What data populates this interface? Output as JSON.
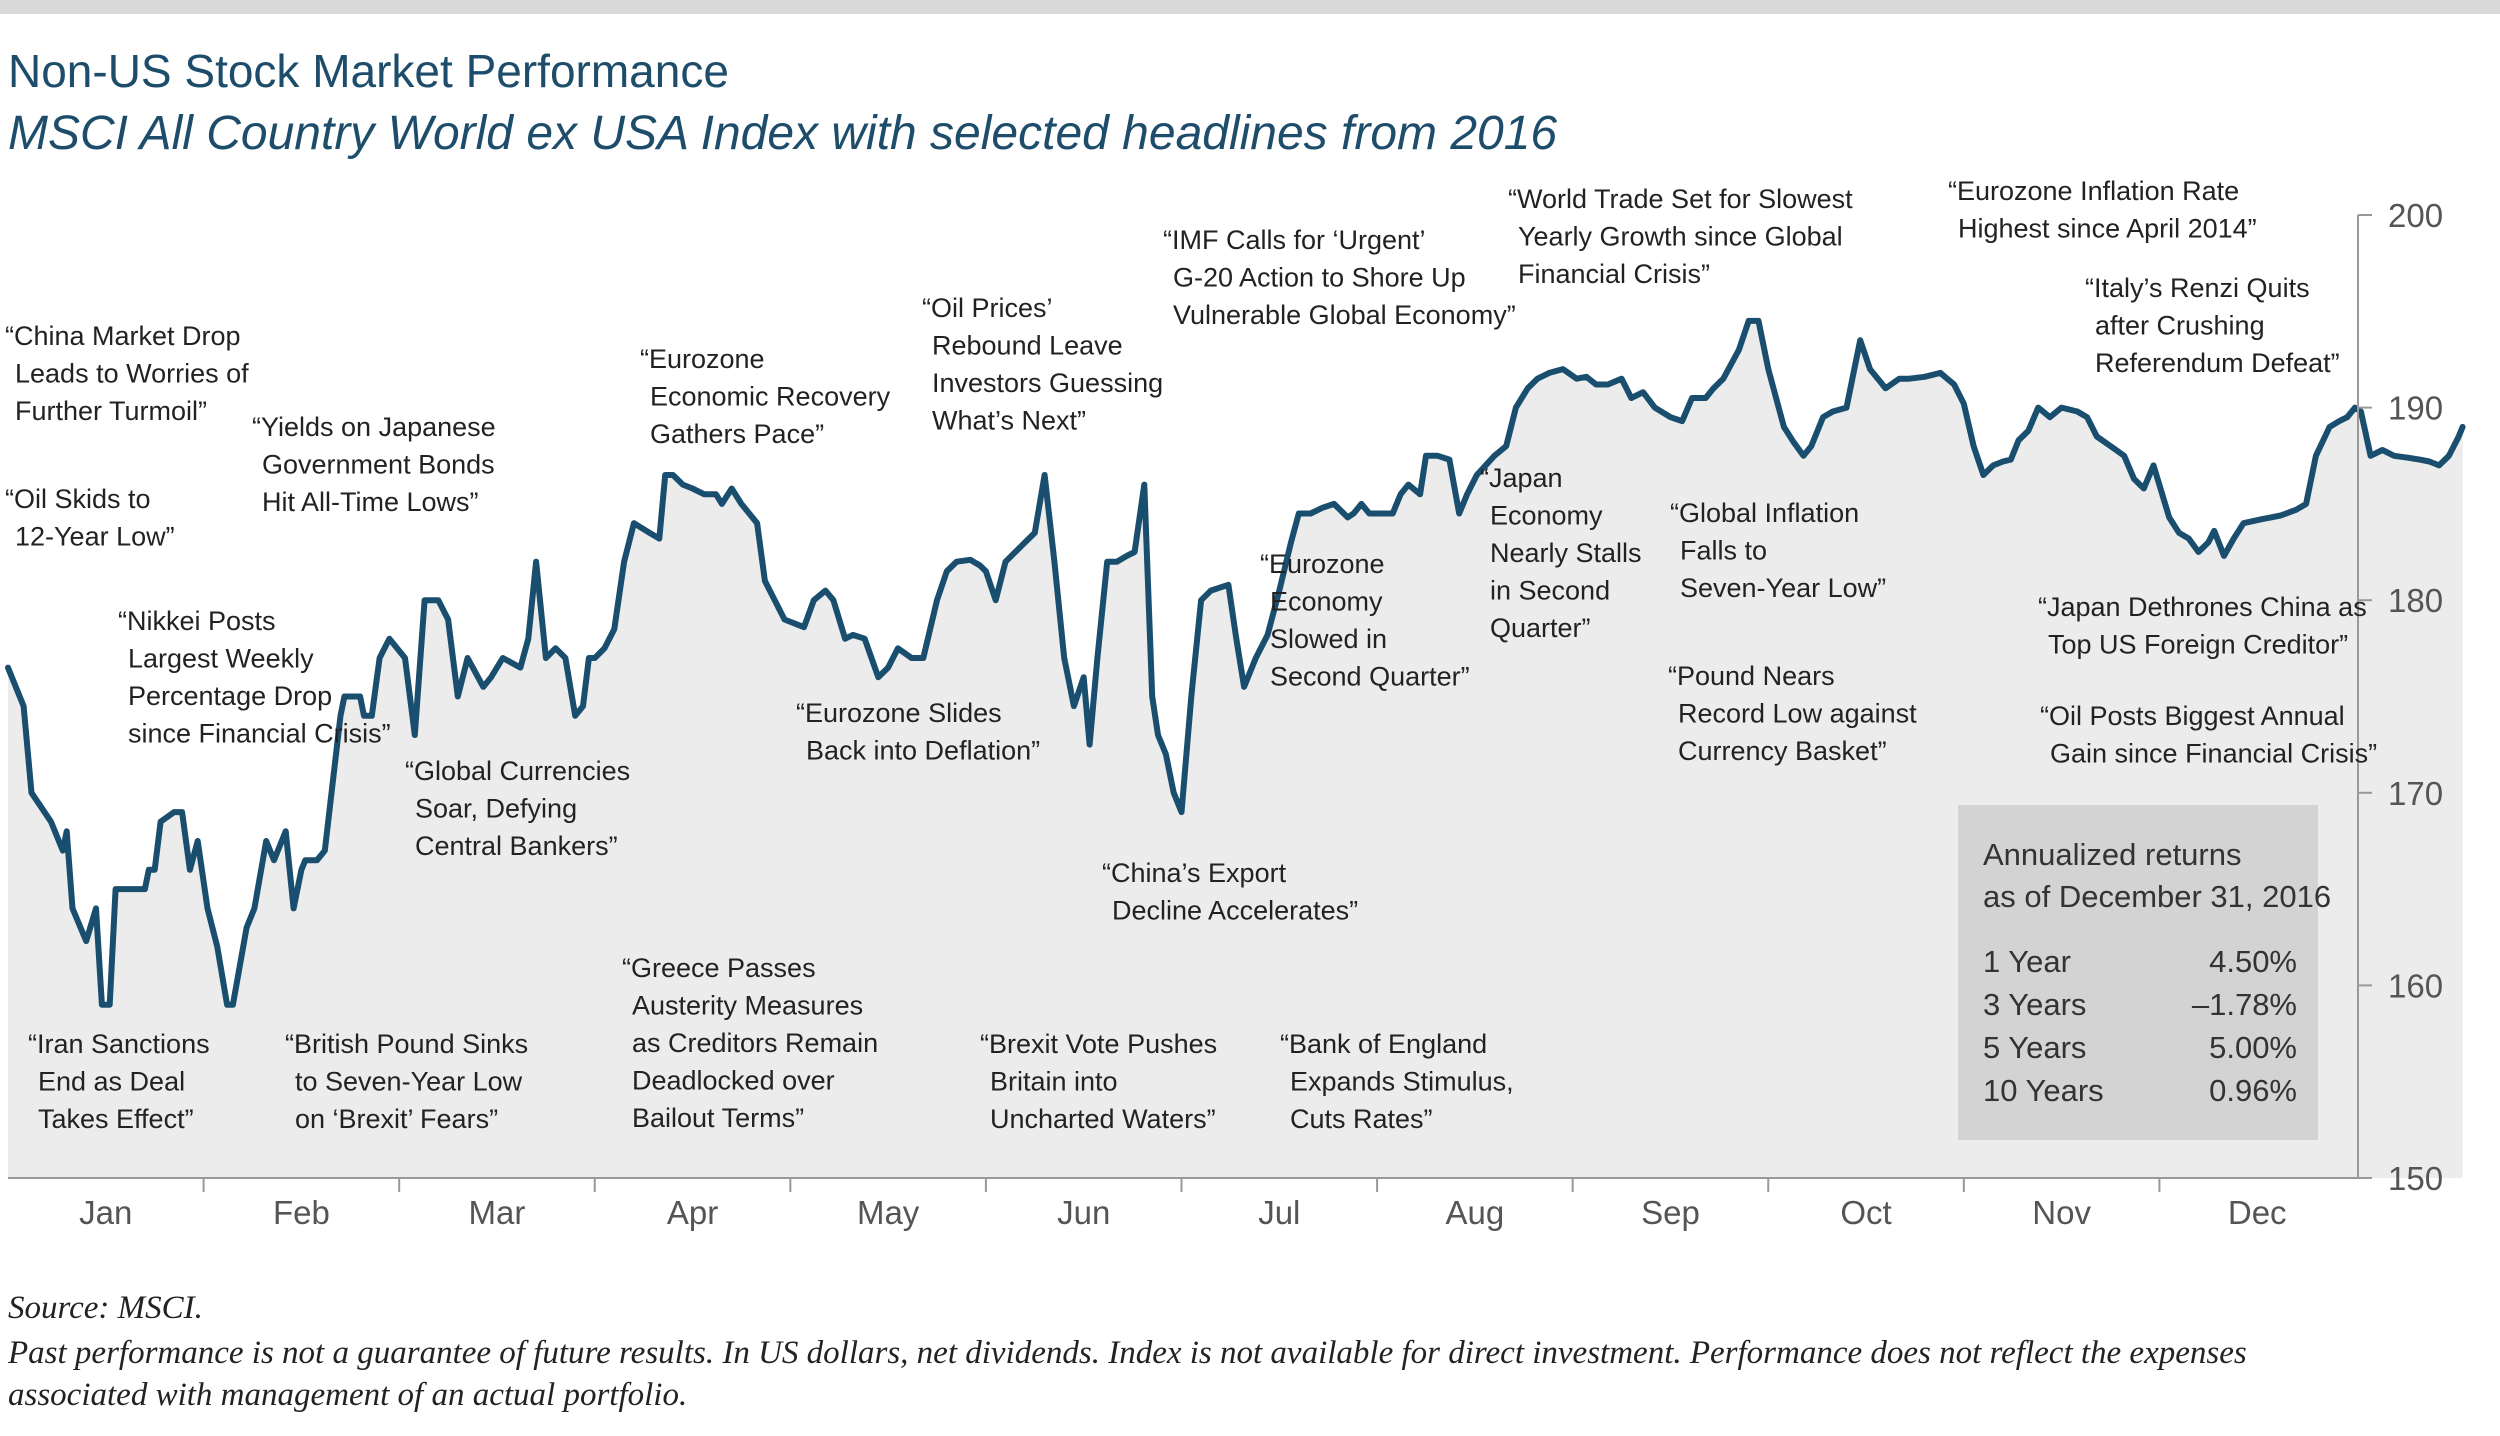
{
  "title": "Non-US Stock Market Performance",
  "subtitle": "MSCI All Country World ex USA Index with selected headlines from 2016",
  "chart_data": {
    "type": "area",
    "title": "Non-US Stock Market Performance",
    "subtitle": "MSCI All Country World ex USA Index with selected headlines from 2016",
    "xlabel": "",
    "ylabel": "",
    "ylim": [
      150,
      200
    ],
    "yticks": [
      "150",
      "160",
      "170",
      "180",
      "190",
      "200"
    ],
    "months": [
      "Jan",
      "Feb",
      "Mar",
      "Apr",
      "May",
      "Jun",
      "Jul",
      "Aug",
      "Sep",
      "Oct",
      "Nov",
      "Dec"
    ],
    "series": [
      {
        "name": "MSCI All Country World ex USA Index",
        "points": [
          [
            0.0,
            176.5
          ],
          [
            0.08,
            174.5
          ],
          [
            0.12,
            170
          ],
          [
            0.22,
            168.5
          ],
          [
            0.28,
            167
          ],
          [
            0.3,
            168
          ],
          [
            0.33,
            164
          ],
          [
            0.4,
            162.3
          ],
          [
            0.45,
            164
          ],
          [
            0.48,
            159
          ],
          [
            0.52,
            159
          ],
          [
            0.55,
            165
          ],
          [
            0.7,
            165
          ],
          [
            0.72,
            166
          ],
          [
            0.75,
            166
          ],
          [
            0.78,
            168.5
          ],
          [
            0.85,
            169
          ],
          [
            0.89,
            169
          ],
          [
            0.93,
            166
          ],
          [
            0.97,
            167.5
          ],
          [
            1.02,
            164
          ],
          [
            1.07,
            162
          ],
          [
            1.12,
            159
          ],
          [
            1.15,
            159
          ],
          [
            1.22,
            163
          ],
          [
            1.26,
            164
          ],
          [
            1.32,
            167.5
          ],
          [
            1.36,
            166.5
          ],
          [
            1.42,
            168
          ],
          [
            1.46,
            164
          ],
          [
            1.5,
            166
          ],
          [
            1.52,
            166.5
          ],
          [
            1.58,
            166.5
          ],
          [
            1.62,
            167
          ],
          [
            1.7,
            174
          ],
          [
            1.72,
            175
          ],
          [
            1.78,
            175
          ],
          [
            1.8,
            175
          ],
          [
            1.82,
            174
          ],
          [
            1.86,
            174
          ],
          [
            1.9,
            177
          ],
          [
            1.95,
            178
          ],
          [
            2.03,
            177
          ],
          [
            2.08,
            173
          ],
          [
            2.13,
            180
          ],
          [
            2.2,
            180
          ],
          [
            2.25,
            179
          ],
          [
            2.3,
            175
          ],
          [
            2.35,
            177
          ],
          [
            2.43,
            175.5
          ],
          [
            2.47,
            176
          ],
          [
            2.53,
            177
          ],
          [
            2.62,
            176.5
          ],
          [
            2.66,
            178
          ],
          [
            2.7,
            182
          ],
          [
            2.75,
            177
          ],
          [
            2.8,
            177.5
          ],
          [
            2.85,
            177
          ],
          [
            2.9,
            174
          ],
          [
            2.94,
            174.5
          ],
          [
            2.97,
            177
          ],
          [
            3.0,
            177
          ],
          [
            3.05,
            177.5
          ],
          [
            3.1,
            178.5
          ],
          [
            3.15,
            182
          ],
          [
            3.2,
            184
          ],
          [
            3.28,
            183.5
          ],
          [
            3.33,
            183.2
          ],
          [
            3.36,
            186.5
          ],
          [
            3.4,
            186.5
          ],
          [
            3.45,
            186
          ],
          [
            3.5,
            185.8
          ],
          [
            3.56,
            185.5
          ],
          [
            3.62,
            185.5
          ],
          [
            3.65,
            185
          ],
          [
            3.7,
            185.8
          ],
          [
            3.75,
            185
          ],
          [
            3.83,
            184
          ],
          [
            3.87,
            181
          ],
          [
            3.92,
            180
          ],
          [
            3.97,
            179
          ],
          [
            4.07,
            178.6
          ],
          [
            4.12,
            180
          ],
          [
            4.18,
            180.5
          ],
          [
            4.22,
            180
          ],
          [
            4.28,
            178
          ],
          [
            4.32,
            178.2
          ],
          [
            4.38,
            178
          ],
          [
            4.45,
            176
          ],
          [
            4.5,
            176.5
          ],
          [
            4.55,
            177.5
          ],
          [
            4.62,
            177
          ],
          [
            4.68,
            177
          ],
          [
            4.75,
            180
          ],
          [
            4.8,
            181.5
          ],
          [
            4.85,
            182
          ],
          [
            4.92,
            182.1
          ],
          [
            4.97,
            181.8
          ],
          [
            5.0,
            181.5
          ],
          [
            5.05,
            180
          ],
          [
            5.1,
            182
          ],
          [
            5.2,
            183
          ],
          [
            5.25,
            183.5
          ],
          [
            5.3,
            186.5
          ],
          [
            5.35,
            182
          ],
          [
            5.4,
            177
          ],
          [
            5.42,
            176
          ],
          [
            5.45,
            174.5
          ],
          [
            5.5,
            176
          ],
          [
            5.53,
            172.5
          ],
          [
            5.57,
            177
          ],
          [
            5.62,
            182
          ],
          [
            5.67,
            182
          ],
          [
            5.72,
            182.3
          ],
          [
            5.76,
            182.5
          ],
          [
            5.81,
            186
          ],
          [
            5.85,
            175
          ],
          [
            5.88,
            173
          ],
          [
            5.92,
            172
          ],
          [
            5.96,
            170
          ],
          [
            6.0,
            169
          ],
          [
            6.05,
            175
          ],
          [
            6.1,
            180
          ],
          [
            6.15,
            180.5
          ],
          [
            6.24,
            180.8
          ],
          [
            6.28,
            178
          ],
          [
            6.32,
            175.5
          ],
          [
            6.38,
            177
          ],
          [
            6.44,
            178.2
          ],
          [
            6.5,
            180.5
          ],
          [
            6.56,
            183
          ],
          [
            6.6,
            184.5
          ],
          [
            6.66,
            184.5
          ],
          [
            6.72,
            184.8
          ],
          [
            6.78,
            185
          ],
          [
            6.85,
            184.3
          ],
          [
            6.88,
            184.5
          ],
          [
            6.92,
            185
          ],
          [
            6.96,
            184.5
          ],
          [
            7.0,
            184.5
          ],
          [
            7.08,
            184.5
          ],
          [
            7.12,
            185.5
          ],
          [
            7.16,
            186
          ],
          [
            7.22,
            185.5
          ],
          [
            7.25,
            187.5
          ],
          [
            7.31,
            187.5
          ],
          [
            7.37,
            187.3
          ],
          [
            7.42,
            184.5
          ],
          [
            7.46,
            185.5
          ],
          [
            7.51,
            186.5
          ],
          [
            7.6,
            187.5
          ],
          [
            7.66,
            188
          ],
          [
            7.71,
            190
          ],
          [
            7.77,
            191
          ],
          [
            7.82,
            191.5
          ],
          [
            7.88,
            191.8
          ],
          [
            7.95,
            192
          ],
          [
            8.02,
            191.5
          ],
          [
            8.07,
            191.6
          ],
          [
            8.12,
            191.2
          ],
          [
            8.18,
            191.2
          ],
          [
            8.25,
            191.5
          ],
          [
            8.3,
            190.5
          ],
          [
            8.36,
            190.8
          ],
          [
            8.42,
            190
          ],
          [
            8.5,
            189.5
          ],
          [
            8.56,
            189.3
          ],
          [
            8.61,
            190.5
          ],
          [
            8.68,
            190.5
          ],
          [
            8.72,
            191
          ],
          [
            8.77,
            191.5
          ],
          [
            8.85,
            193
          ],
          [
            8.9,
            194.5
          ],
          [
            8.95,
            194.5
          ],
          [
            9.0,
            192
          ],
          [
            9.08,
            189
          ],
          [
            9.13,
            188.2
          ],
          [
            9.18,
            187.5
          ],
          [
            9.22,
            188
          ],
          [
            9.28,
            189.5
          ],
          [
            9.33,
            189.8
          ],
          [
            9.4,
            190
          ],
          [
            9.47,
            193.5
          ],
          [
            9.52,
            192
          ],
          [
            9.6,
            191
          ],
          [
            9.67,
            191.5
          ],
          [
            9.72,
            191.5
          ],
          [
            9.8,
            191.6
          ],
          [
            9.88,
            191.8
          ],
          [
            9.95,
            191.2
          ],
          [
            10.0,
            190.2
          ],
          [
            10.05,
            188
          ],
          [
            10.1,
            186.5
          ],
          [
            10.15,
            187
          ],
          [
            10.2,
            187.2
          ],
          [
            10.24,
            187.3
          ],
          [
            10.28,
            188.3
          ],
          [
            10.33,
            188.8
          ],
          [
            10.38,
            190
          ],
          [
            10.44,
            189.5
          ],
          [
            10.5,
            190
          ],
          [
            10.58,
            189.8
          ],
          [
            10.63,
            189.5
          ],
          [
            10.68,
            188.5
          ],
          [
            10.75,
            188
          ],
          [
            10.82,
            187.5
          ],
          [
            10.87,
            186.3
          ],
          [
            10.92,
            185.8
          ],
          [
            10.97,
            187
          ],
          [
            11.05,
            184.3
          ],
          [
            11.1,
            183.5
          ],
          [
            11.15,
            183.2
          ],
          [
            11.2,
            182.5
          ],
          [
            11.25,
            183
          ],
          [
            11.28,
            183.6
          ],
          [
            11.33,
            182.3
          ],
          [
            11.38,
            183.2
          ],
          [
            11.43,
            184
          ],
          [
            11.52,
            184.2
          ],
          [
            11.57,
            184.3
          ],
          [
            11.62,
            184.4
          ],
          [
            11.7,
            184.7
          ],
          [
            11.75,
            185
          ],
          [
            11.8,
            187.5
          ],
          [
            11.87,
            189
          ],
          [
            11.92,
            189.3
          ],
          [
            11.96,
            189.5
          ],
          [
            12.0,
            190
          ],
          [
            12.03,
            189.8
          ],
          [
            12.08,
            187.5
          ],
          [
            12.14,
            187.8
          ],
          [
            12.2,
            187.5
          ],
          [
            12.27,
            187.4
          ],
          [
            12.33,
            187.3
          ],
          [
            12.38,
            187.2
          ],
          [
            12.43,
            187
          ],
          [
            12.48,
            187.5
          ],
          [
            12.53,
            188.5
          ],
          [
            12.55,
            189
          ]
        ]
      }
    ],
    "annotations": [
      {
        "lines": [
          "“China Market Drop",
          "Leads to Worries of",
          "Further Turmoil”"
        ]
      },
      {
        "lines": [
          "“Oil Skids to",
          "12-Year Low”"
        ]
      },
      {
        "lines": [
          "“Yields on Japanese",
          "Government Bonds",
          "Hit All-Time Lows”"
        ]
      },
      {
        "lines": [
          "“Nikkei Posts",
          "Largest Weekly",
          "Percentage Drop",
          "since Financial Crisis”"
        ]
      },
      {
        "lines": [
          "“Global Currencies",
          "Soar, Defying",
          "Central Bankers”"
        ]
      },
      {
        "lines": [
          "“Iran Sanctions",
          "End as Deal",
          "Takes Effect”"
        ]
      },
      {
        "lines": [
          "“British Pound Sinks",
          "to Seven-Year Low",
          "on ‘Brexit’ Fears”"
        ]
      },
      {
        "lines": [
          "“Eurozone",
          "Economic Recovery",
          "Gathers Pace”"
        ]
      },
      {
        "lines": [
          "“Greece Passes",
          "Austerity Measures",
          "as Creditors Remain",
          "Deadlocked over",
          "Bailout Terms”"
        ]
      },
      {
        "lines": [
          "“Oil Prices’",
          "Rebound Leave",
          "Investors Guessing",
          "What’s Next”"
        ]
      },
      {
        "lines": [
          "“Eurozone Slides",
          "Back into Deflation”"
        ]
      },
      {
        "lines": [
          "“Brexit Vote Pushes",
          "Britain into",
          "Uncharted Waters”"
        ]
      },
      {
        "lines": [
          "“IMF Calls for ‘Urgent’",
          "G-20 Action to Shore Up",
          "Vulnerable Global Economy”"
        ]
      },
      {
        "lines": [
          "“China’s Export",
          "Decline Accelerates”"
        ]
      },
      {
        "lines": [
          "“Eurozone",
          "Economy",
          "Slowed in",
          "Second Quarter”"
        ]
      },
      {
        "lines": [
          "“Bank of England",
          "Expands Stimulus,",
          "Cuts Rates”"
        ]
      },
      {
        "lines": [
          "“World Trade Set for Slowest",
          "Yearly Growth since Global",
          "Financial Crisis”"
        ]
      },
      {
        "lines": [
          "“Japan",
          "Economy",
          "Nearly Stalls",
          "in Second",
          "Quarter”"
        ]
      },
      {
        "lines": [
          "“Global Inflation",
          "Falls to",
          "Seven-Year Low”"
        ]
      },
      {
        "lines": [
          "“Pound Nears",
          "Record Low against",
          "Currency Basket”"
        ]
      },
      {
        "lines": [
          "“Eurozone Inflation Rate",
          "Highest since April 2014”"
        ]
      },
      {
        "lines": [
          "“Italy’s Renzi Quits",
          "after Crushing",
          "Referendum Defeat”"
        ]
      },
      {
        "lines": [
          "“Japan Dethrones China as",
          "Top US Foreign Creditor”"
        ]
      },
      {
        "lines": [
          "“Oil Posts Biggest Annual",
          "Gain since Financial Crisis”"
        ]
      }
    ],
    "returns_box": {
      "heading": [
        "Annualized returns",
        "as of December 31, 2016"
      ],
      "rows": [
        {
          "label": "1 Year",
          "value": "4.50%"
        },
        {
          "label": "3 Years",
          "value": "–1.78%"
        },
        {
          "label": "5 Years",
          "value": "5.00%"
        },
        {
          "label": "10 Years",
          "value": "0.96%"
        }
      ]
    },
    "colors": {
      "line": "#1a4e6e",
      "fill": "#ececec",
      "box": "#d3d3d3",
      "axis": "#999999"
    }
  },
  "footer": {
    "source": "Source: MSCI.",
    "disclaimer_1": "Past performance is not a guarantee of future results. In US dollars, net dividends. Index is not available for direct investment. Performance does not reflect the expenses",
    "disclaimer_2": "associated with management of an actual portfolio."
  }
}
